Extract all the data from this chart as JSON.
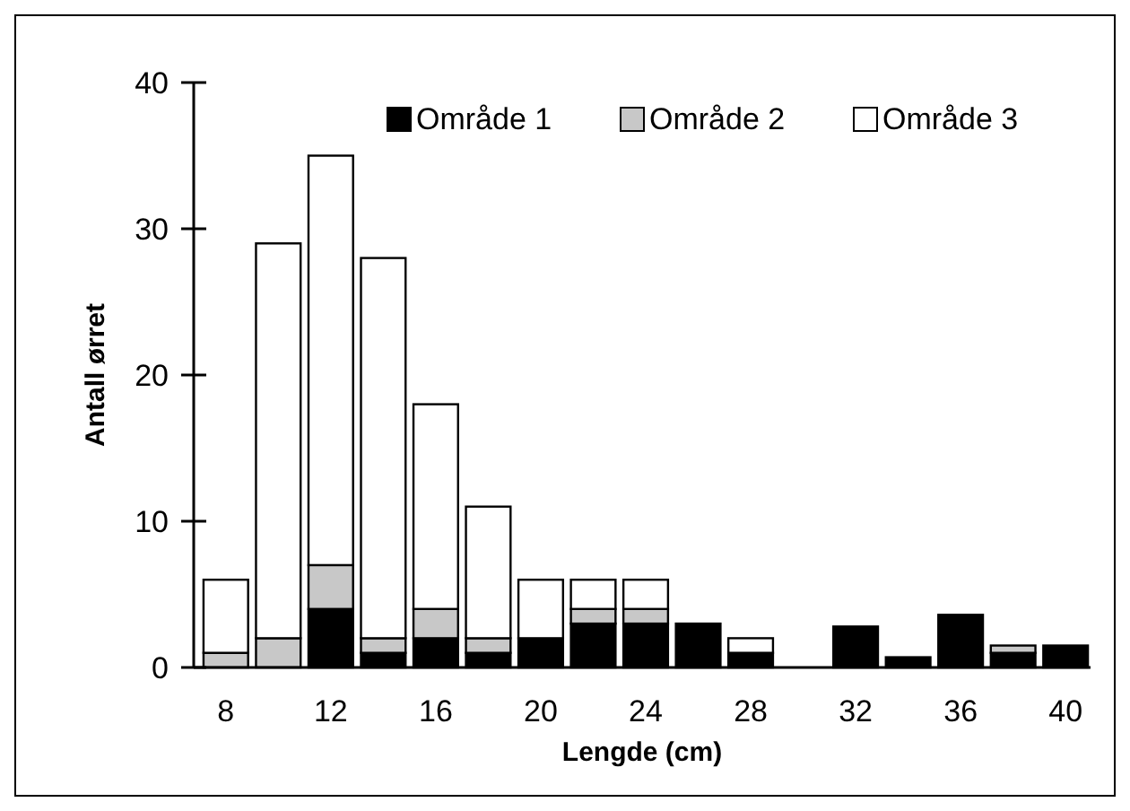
{
  "chart_data": {
    "type": "bar",
    "stacked": true,
    "xlabel": "Lengde (cm)",
    "ylabel": "Antall ørret",
    "categories": [
      "8",
      null,
      "12",
      null,
      "16",
      null,
      "20",
      null,
      "24",
      null,
      "28",
      null,
      "32",
      null,
      "36",
      null,
      "40"
    ],
    "series": [
      {
        "name": "Område 1",
        "color": "#000000",
        "values": [
          0,
          0,
          4,
          1,
          2,
          1,
          2,
          3,
          3,
          3,
          1,
          0,
          2.8,
          0.7,
          3.6,
          1,
          1.5
        ]
      },
      {
        "name": "Område 2",
        "color": "#c8c8c8",
        "values": [
          1,
          2,
          3,
          1,
          2,
          1,
          0,
          1,
          1,
          0,
          0,
          0,
          0,
          0,
          0,
          0.5,
          0
        ]
      },
      {
        "name": "Område 3",
        "color": "#ffffff",
        "values": [
          5,
          27,
          28,
          26,
          14,
          9,
          4,
          2,
          2,
          0,
          1,
          0,
          0,
          0,
          0,
          0,
          0
        ]
      }
    ],
    "ylim": [
      0,
      40
    ],
    "yticks": [
      0,
      10,
      20,
      30,
      40
    ],
    "grid": false,
    "legend": "top right"
  }
}
